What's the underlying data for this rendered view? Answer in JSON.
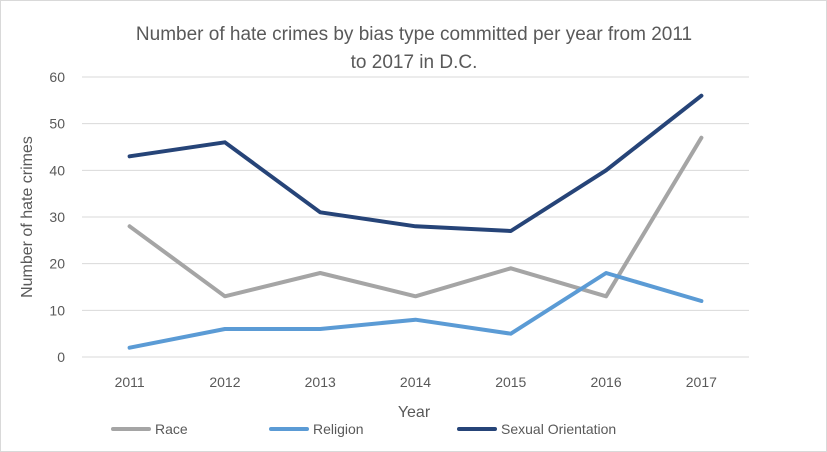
{
  "chart_data": {
    "type": "line",
    "title_lines": [
      "Number of hate crimes by bias type committed per year from 2011",
      "to 2017 in D.C."
    ],
    "xlabel": "Year",
    "ylabel": "Number of hate crimes",
    "categories": [
      "2011",
      "2012",
      "2013",
      "2014",
      "2015",
      "2016",
      "2017"
    ],
    "ylim": [
      0,
      60
    ],
    "yticks": [
      0,
      10,
      20,
      30,
      40,
      50,
      60
    ],
    "grid": true,
    "legend_position": "bottom",
    "series": [
      {
        "name": "Race",
        "color": "#a5a5a5",
        "values": [
          28,
          13,
          18,
          13,
          19,
          13,
          47
        ]
      },
      {
        "name": "Religion",
        "color": "#5b9bd5",
        "values": [
          2,
          6,
          6,
          8,
          5,
          18,
          12
        ]
      },
      {
        "name": "Sexual Orientation",
        "color": "#264478",
        "values": [
          43,
          46,
          31,
          28,
          27,
          40,
          56
        ]
      }
    ]
  }
}
